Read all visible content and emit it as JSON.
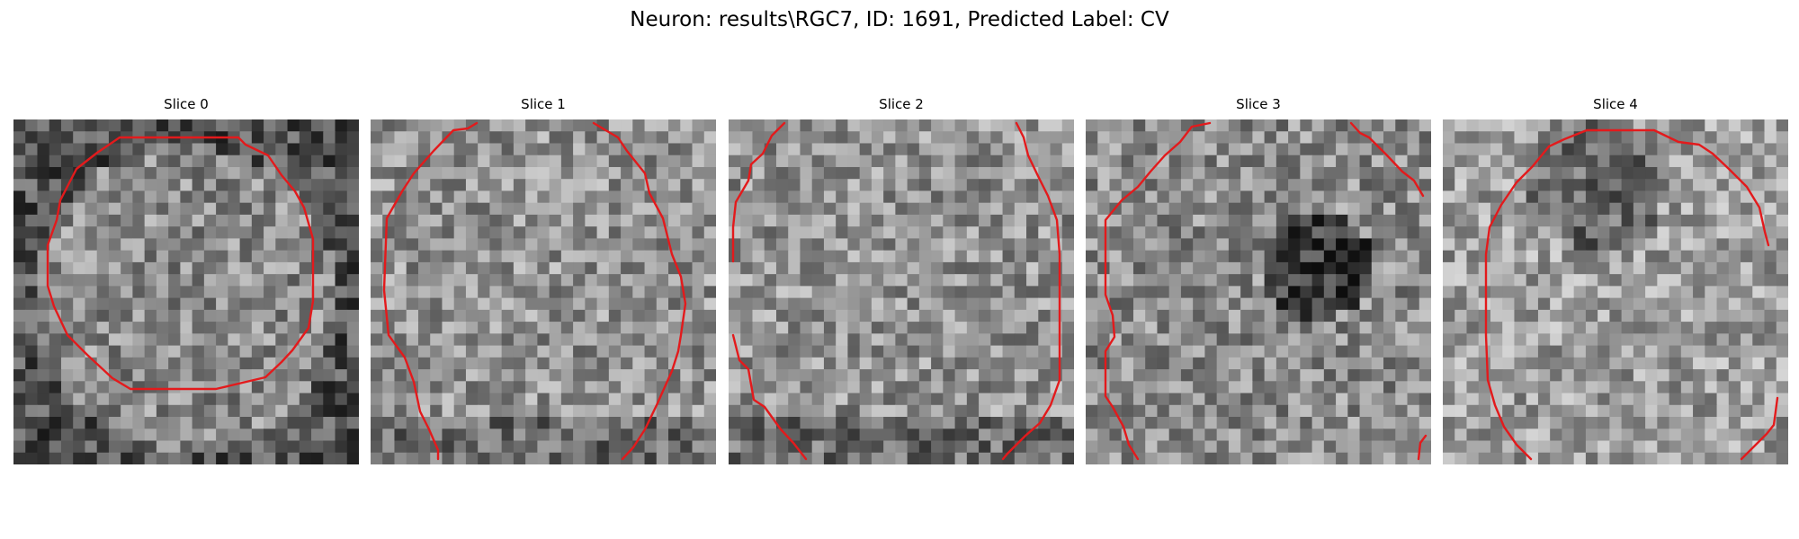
{
  "figure": {
    "title": "Neuron: results\\RGC7, ID: 1691, Predicted Label: CV"
  },
  "colors": {
    "contour": "#e31a1c",
    "background": "#ffffff"
  },
  "slices": [
    {
      "title": "Slice 0",
      "mean": 0.48,
      "center": [
        0.5,
        0.52
      ],
      "radius": 0.44
    },
    {
      "title": "Slice 1",
      "mean": 0.58,
      "center": [
        0.5,
        0.4
      ],
      "radius": 0.3
    },
    {
      "title": "Slice 2",
      "mean": 0.58,
      "center": [
        0.6,
        0.55
      ],
      "radius": 0.3
    },
    {
      "title": "Slice 3",
      "mean": 0.55,
      "center": [
        0.67,
        0.42
      ],
      "radius": 0.16
    },
    {
      "title": "Slice 4",
      "mean": 0.62,
      "center": [
        0.45,
        0.18
      ],
      "radius": 0.2
    }
  ]
}
